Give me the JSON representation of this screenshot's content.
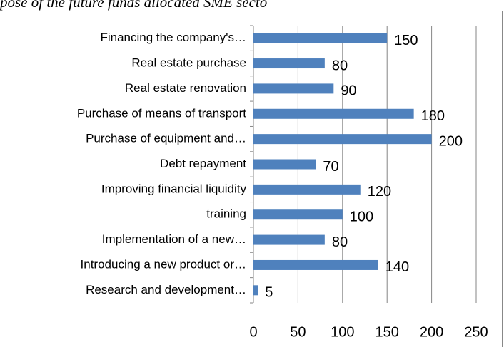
{
  "caption": "pose of the future funds allocated SME secto",
  "chart_data": {
    "type": "hbar",
    "categories": [
      "Financing the company's…",
      "Real estate purchase",
      "Real estate renovation",
      "Purchase of means of transport",
      "Purchase of equipment and…",
      "Debt repayment",
      "Improving financial liquidity",
      "training",
      "Implementation of a new…",
      "Introducing a new product or…",
      "Research and development…"
    ],
    "values": [
      150,
      80,
      90,
      180,
      200,
      70,
      120,
      100,
      80,
      140,
      5
    ],
    "color": "#4f81bd",
    "xlim": [
      0,
      250
    ],
    "xticks": [
      0,
      50,
      100,
      150,
      200,
      250
    ],
    "grid": true
  }
}
